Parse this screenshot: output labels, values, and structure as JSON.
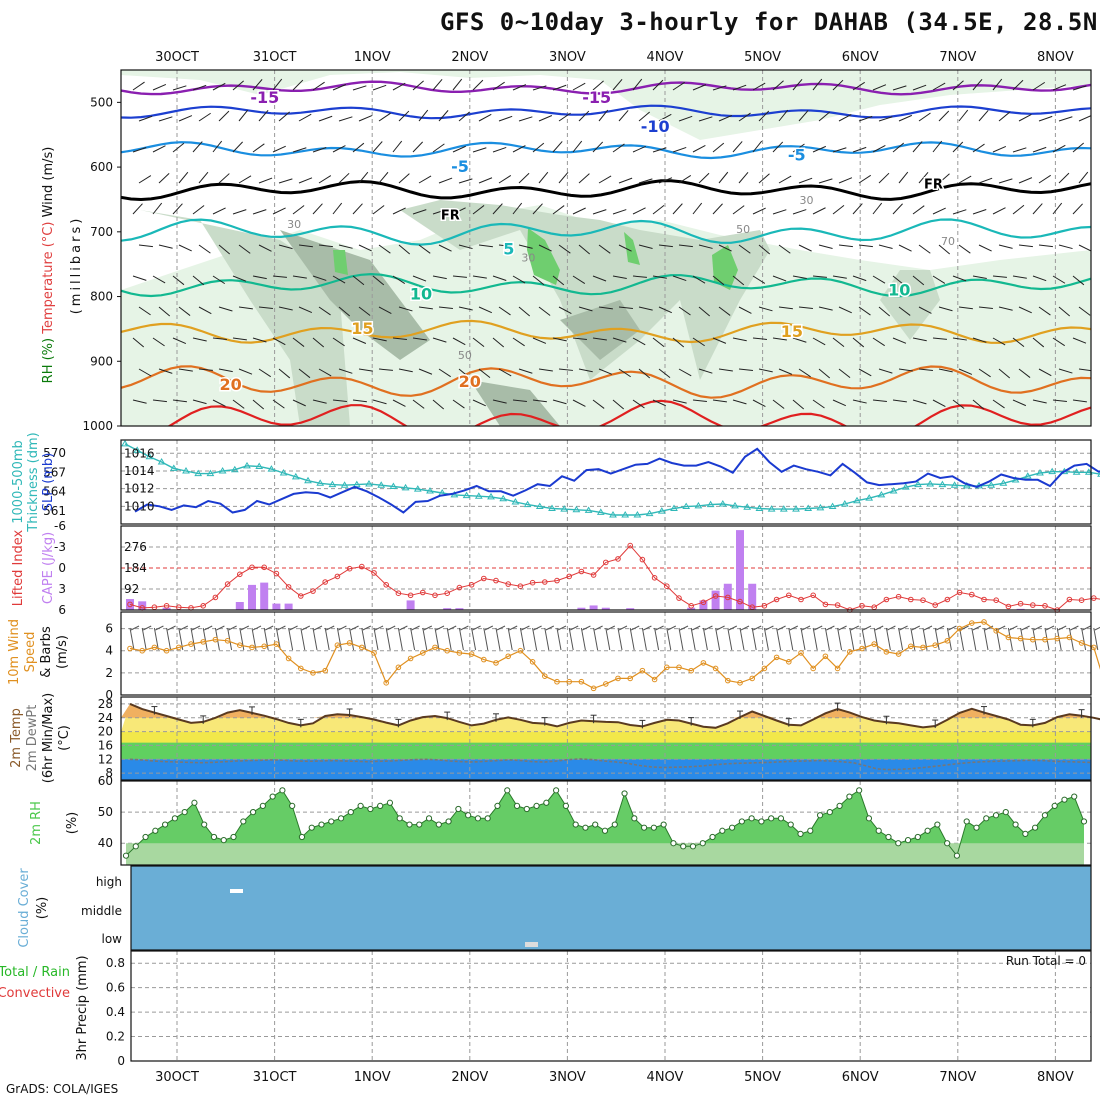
{
  "title": "GFS 0~10day 3-hourly for DAHAB (34.5E, 28.5N)",
  "credit": "GrADS: COLA/IGES",
  "dates": [
    "30OCT",
    "31OCT",
    "1NOV",
    "2NOV",
    "3NOV",
    "4NOV",
    "5NOV",
    "6NOV",
    "7NOV",
    "8NOV"
  ],
  "colors": {
    "rh_light": "#e6f4e6",
    "rh_mid": "#c9dcc9",
    "rh_dark": "#a8bca8",
    "rh_green": "#6fce6f",
    "temp_minus15": "#8a1fb0",
    "temp_minus10": "#1c3fd0",
    "temp_minus5": "#1a8ee0",
    "temp_0": "#000000",
    "temp_5": "#1ab8b8",
    "temp_10": "#12b890",
    "temp_15": "#e0a020",
    "temp_20": "#e07020",
    "temp_25": "#e02020",
    "slp": "#1a3ad0",
    "thickness": "#30b8b8",
    "lifted_index": "#e03a3a",
    "cape": "#c080f0",
    "wind10": "#e09020",
    "dewpt_band": "#2a8ae8",
    "rh2m": "#4cc84c",
    "cloud": "#6aaed6"
  },
  "chart_data": [
    {
      "panel": "cross-section",
      "type": "heatmap",
      "ylabel_parts": [
        "RH (%)",
        "Temperature (°C)",
        "Wind (m/s)"
      ],
      "ylabel2": "(millibars)",
      "y_ticks": [
        "500",
        "600",
        "700",
        "800",
        "900",
        "1000"
      ],
      "ylim": [
        450,
        1000
      ],
      "contour_labels": {
        "temperature": [
          {
            "value": "-15",
            "level": 493,
            "day": 0.9
          },
          {
            "value": "-15",
            "level": 493,
            "day": 4.3
          },
          {
            "value": "-10",
            "level": 538,
            "day": 4.9
          },
          {
            "value": "-5",
            "level": 582,
            "day": 6.35
          },
          {
            "value": "-5",
            "level": 600,
            "day": 2.9
          },
          {
            "value": "FR",
            "level": 673,
            "day": 2.8
          },
          {
            "value": "FR",
            "level": 625,
            "day": 7.75
          },
          {
            "value": "5",
            "level": 727,
            "day": 3.4
          },
          {
            "value": "10",
            "level": 797,
            "day": 2.5
          },
          {
            "value": "10",
            "level": 791,
            "day": 7.4
          },
          {
            "value": "15",
            "level": 850,
            "day": 1.9
          },
          {
            "value": "15",
            "level": 855,
            "day": 6.3
          },
          {
            "value": "20",
            "level": 937,
            "day": 0.55
          },
          {
            "value": "20",
            "level": 932,
            "day": 3.0
          }
        ],
        "relative_humidity": [
          {
            "value": "30",
            "level": 688,
            "day": 1.2
          },
          {
            "value": "30",
            "level": 651,
            "day": 6.45
          },
          {
            "value": "30",
            "level": 740,
            "day": 3.6
          },
          {
            "value": "50",
            "level": 696,
            "day": 5.8
          },
          {
            "value": "50",
            "level": 890,
            "day": 2.95
          },
          {
            "value": "70",
            "level": 714,
            "day": 7.9
          }
        ]
      }
    },
    {
      "panel": "slp-thickness",
      "type": "line",
      "ylabel_left": [
        "1000-500mb",
        "Thickness (dm)"
      ],
      "ylabel_right": "SLP (mb)",
      "left_ticks": [
        "570",
        "567",
        "564",
        "561"
      ],
      "right_ticks": [
        "1016",
        "1014",
        "1012",
        "1010"
      ],
      "ylim_slp": [
        1008,
        1017.5
      ],
      "ylim_thickness": [
        559,
        572
      ],
      "series": [
        {
          "name": "SLP (mb)",
          "values": [
            1009.4,
            1010.2,
            1010.0,
            1009.6,
            1010.1,
            1009.9,
            1010.6,
            1010.3,
            1009.3,
            1009.6,
            1010.6,
            1010.2,
            1010.8,
            1011.4,
            1011.6,
            1011.5,
            1011.0,
            1011.6,
            1012.2,
            1011.7,
            1011.0,
            1010.2,
            1009.3,
            1010.5,
            1010.6,
            1011.2,
            1011.4,
            1011.8,
            1012.3,
            1011.7,
            1011.7,
            1011.2,
            1011.8,
            1012.5,
            1012.3,
            1013.4,
            1012.9,
            1014.1,
            1014.2,
            1013.7,
            1014.2,
            1014.7,
            1014.8,
            1015.4,
            1014.9,
            1014.6,
            1014.6,
            1015.0,
            1014.5,
            1013.8,
            1015.6,
            1016.5,
            1015.0,
            1013.9,
            1014.6,
            1014.2,
            1013.9,
            1013.5,
            1014.8,
            1013.8,
            1012.7,
            1012.4,
            1012.5,
            1012.6,
            1012.8,
            1013.7,
            1013.2,
            1013.4,
            1012.6,
            1012.2,
            1012.8,
            1013.6,
            1013.2,
            1013.0,
            1013.0,
            1012.3,
            1013.8,
            1014.6,
            1014.8,
            1013.9,
            1014.4,
            1014.8,
            1015.2,
            1014.7,
            1014.9,
            1014.1,
            1015.0,
            1015.5,
            1015.0,
            1014.3,
            1014.6,
            1015.1
          ]
        },
        {
          "name": "1000-500mb Thickness (dm)",
          "values": [
            571.4,
            570.4,
            569.4,
            568.6,
            567.6,
            567.2,
            566.8,
            566.8,
            567.2,
            567.4,
            568.0,
            567.9,
            567.5,
            566.9,
            566.3,
            565.7,
            565.3,
            565.1,
            565.0,
            565.1,
            565.2,
            565.0,
            564.8,
            564.6,
            564.4,
            564.1,
            563.8,
            563.5,
            563.4,
            563.3,
            563.2,
            562.9,
            562.4,
            562.0,
            561.7,
            561.4,
            561.3,
            561.2,
            561.1,
            560.8,
            560.4,
            560.4,
            560.4,
            560.6,
            561.0,
            561.4,
            561.7,
            561.8,
            562.0,
            562.1,
            561.8,
            561.6,
            561.4,
            561.3,
            561.3,
            561.3,
            561.4,
            561.5,
            561.7,
            562.1,
            562.6,
            563.0,
            563.5,
            564.1,
            564.7,
            565.1,
            565.2,
            565.1,
            565.0,
            564.9,
            564.9,
            565.0,
            565.3,
            565.8,
            566.4,
            566.9,
            567.1,
            567.1,
            567.0,
            567.0,
            566.7,
            566.6,
            566.8,
            567.2,
            567.7,
            568.2,
            568.5,
            568.2,
            567.9,
            567.6,
            567.4,
            567.6
          ]
        }
      ]
    },
    {
      "panel": "stability",
      "type": "bar",
      "ylabel_left": [
        "Lifted Index"
      ],
      "ylabel_right": "CAPE (J/kg)",
      "left_ticks": [
        "-6",
        "-3",
        "0",
        "3",
        "6"
      ],
      "right_ticks": [
        "276",
        "184",
        "92"
      ],
      "ylim_lifted_index": [
        -6,
        6
      ],
      "ylim_cape": [
        0,
        368
      ],
      "series": [
        {
          "name": "CAPE (J/kg)",
          "values": [
            48,
            38,
            0,
            10,
            0,
            0,
            0,
            0,
            0,
            35,
            110,
            120,
            28,
            28,
            0,
            0,
            0,
            0,
            0,
            0,
            0,
            0,
            0,
            42,
            0,
            0,
            8,
            8,
            0,
            0,
            0,
            0,
            0,
            0,
            0,
            0,
            0,
            10,
            20,
            10,
            0,
            8,
            0,
            0,
            0,
            0,
            10,
            42,
            85,
            115,
            350,
            115,
            0,
            0,
            0,
            0,
            0,
            0,
            0,
            0,
            0,
            0,
            0,
            0,
            0,
            0,
            0,
            0,
            0,
            0,
            0,
            0,
            0,
            5,
            0,
            0,
            0,
            0,
            0,
            0,
            0,
            0,
            0,
            0,
            0,
            0,
            0,
            0,
            0,
            0,
            0,
            0
          ]
        },
        {
          "name": "Lifted Index",
          "values": [
            5.2,
            5.7,
            5.6,
            5.4,
            5.6,
            5.7,
            5.4,
            4.2,
            2.3,
            0.9,
            -0.1,
            -0.1,
            0.8,
            2.7,
            4.0,
            3.3,
            2.0,
            1.2,
            0.1,
            -0.2,
            0.7,
            2.4,
            3.6,
            3.9,
            3.5,
            3.9,
            3.6,
            2.8,
            2.4,
            1.5,
            1.8,
            2.3,
            2.6,
            2.1,
            2.0,
            1.8,
            1.2,
            0.5,
            1.0,
            -0.8,
            -1.3,
            -3.2,
            -1.2,
            1.4,
            2.6,
            4.3,
            5.4,
            4.9,
            4.0,
            4.2,
            4.8,
            5.6,
            5.4,
            4.5,
            3.9,
            4.5,
            3.9,
            5.2,
            5.3,
            6.0,
            5.4,
            5.6,
            4.5,
            4.1,
            4.5,
            4.6,
            5.3,
            4.5,
            3.5,
            3.8,
            4.5,
            4.6,
            5.5,
            5.1,
            5.3,
            5.4,
            6.0,
            4.5,
            4.6,
            4.3,
            4.6,
            5.4,
            6.0,
            5.6,
            2.9,
            2.9,
            2.8,
            3.2,
            4.2,
            4.6,
            4.2,
            3.0
          ]
        }
      ]
    },
    {
      "panel": "wind10m",
      "type": "line",
      "ylabel": [
        "10m Wind",
        "Speed",
        "& Barbs",
        "(m/s)"
      ],
      "y_ticks": [
        "6",
        "4",
        "2",
        "0"
      ],
      "ylim": [
        0,
        7.5
      ],
      "series": [
        {
          "name": "10m Wind Speed (m/s)",
          "values": [
            4.2,
            4.0,
            4.3,
            4.0,
            4.3,
            4.6,
            4.8,
            5.0,
            4.9,
            4.5,
            4.3,
            4.4,
            4.6,
            3.3,
            2.4,
            2.0,
            2.2,
            4.5,
            4.7,
            4.3,
            3.8,
            1.1,
            2.5,
            3.3,
            3.8,
            4.3,
            4.0,
            3.8,
            3.7,
            3.2,
            2.9,
            3.5,
            4.0,
            3.0,
            1.7,
            1.2,
            1.2,
            1.2,
            0.6,
            1.0,
            1.5,
            1.5,
            2.2,
            1.4,
            2.5,
            2.5,
            2.2,
            2.9,
            2.4,
            1.3,
            1.1,
            1.5,
            2.4,
            3.4,
            3.0,
            3.8,
            2.4,
            3.5,
            2.4,
            3.9,
            4.2,
            4.6,
            3.9,
            3.7,
            4.4,
            4.3,
            4.5,
            4.9,
            6.0,
            6.5,
            6.6,
            5.8,
            5.2,
            5.1,
            5.0,
            5.0,
            5.1,
            5.2,
            4.7,
            4.3,
            0.7,
            3.4,
            4.3,
            3.9,
            4.4,
            3.9,
            4.2,
            3.9,
            4.7,
            4.6,
            3.7,
            4.0,
            3.6,
            3.6,
            3.8,
            3.8,
            3.6,
            3.2
          ]
        }
      ]
    },
    {
      "panel": "temperature2m",
      "type": "area",
      "ylabel": [
        "2m Temp",
        "2m DewPt",
        "(6hr Min/Max)",
        "(°C)"
      ],
      "y_ticks": [
        "28",
        "24",
        "20",
        "16",
        "12",
        "8"
      ],
      "ylim": [
        6,
        30
      ],
      "series": [
        {
          "name": "2m Temp (°C)",
          "values": [
            28.0,
            26.5,
            25.5,
            24.5,
            23.5,
            22.5,
            22.8,
            24.0,
            25.5,
            26.2,
            25.4,
            24.6,
            23.6,
            22.5,
            21.8,
            22.4,
            24.5,
            25.0,
            24.8,
            24.2,
            23.5,
            22.6,
            21.8,
            23.2,
            24.2,
            24.5,
            23.9,
            22.8,
            21.8,
            22.3,
            23.4,
            24.1,
            23.4,
            22.5,
            22.3,
            21.5,
            22.5,
            23.2,
            23.0,
            22.8,
            22.7,
            21.9,
            21.5,
            22.5,
            23.4,
            23.2,
            22.3,
            21.4,
            21.1,
            22.4,
            24.2,
            25.8,
            24.5,
            23.2,
            22.0,
            21.8,
            23.5,
            25.3,
            26.5,
            25.5,
            24.2,
            23.2,
            22.7,
            22.4,
            21.8,
            21.2,
            21.6,
            23.4,
            25.4,
            26.6,
            25.5,
            24.5,
            23.5,
            22.0,
            21.8,
            22.5,
            24.2,
            25.0,
            24.6,
            24.0,
            23.2,
            22.8,
            22.4,
            22.2,
            23.2,
            24.7,
            25.8,
            25.9,
            24.6,
            23.5,
            23.0,
            22.6,
            22.4
          ]
        },
        {
          "name": "2m DewPt (°C)",
          "values": [
            12.0,
            11.8,
            11.5,
            11.3,
            11.2,
            11.1,
            11.0,
            11.1,
            11.3,
            11.5,
            11.6,
            11.7,
            11.8,
            11.7,
            11.5,
            11.4,
            11.5,
            11.6,
            11.5,
            11.4,
            11.3,
            11.4,
            11.5,
            11.7,
            11.9,
            12.0,
            11.8,
            11.5,
            11.3,
            11.2,
            11.4,
            11.6,
            11.8,
            11.6,
            11.3,
            11.2,
            11.5,
            11.9,
            12.1,
            11.9,
            11.5,
            11.2,
            10.8,
            10.2,
            9.8,
            9.6,
            9.7,
            9.8,
            10.0,
            10.3,
            10.6,
            10.8,
            10.9,
            11.0,
            11.1,
            11.3,
            11.4,
            11.5,
            11.6,
            11.5,
            11.3,
            11.0,
            10.2,
            9.2,
            9.0,
            9.1,
            9.3,
            9.6,
            10.0,
            10.4,
            10.8,
            11.1,
            11.3,
            11.4,
            11.5,
            11.6,
            11.7,
            11.6,
            11.4,
            11.3,
            11.2,
            11.1
          ]
        }
      ]
    },
    {
      "panel": "rh2m",
      "type": "area",
      "ylabel": [
        "2m RH",
        "(%)"
      ],
      "y_ticks": [
        "60",
        "50",
        "40"
      ],
      "ylim": [
        33,
        60
      ],
      "series": [
        {
          "name": "2m RH (%)",
          "values": [
            36,
            39,
            42,
            44,
            46,
            48,
            50,
            53,
            46,
            42,
            41,
            42,
            47,
            50,
            52,
            55,
            57,
            52,
            42,
            45,
            46,
            47,
            48,
            50,
            52,
            51,
            52,
            53,
            48,
            46,
            46,
            48,
            46,
            47,
            51,
            49,
            48,
            48,
            52,
            57,
            52,
            51,
            52,
            53,
            57,
            52,
            46,
            45,
            46,
            44,
            46,
            56,
            48,
            45,
            45,
            46,
            40,
            39,
            39,
            40,
            42,
            44,
            45,
            47,
            48,
            47,
            48,
            48,
            46,
            43,
            44,
            49,
            50,
            52,
            55,
            57,
            48,
            44,
            42,
            40,
            41,
            42,
            44,
            46,
            40,
            36,
            47,
            45,
            48,
            49,
            50,
            46,
            43,
            45,
            49,
            52,
            54,
            55,
            47
          ]
        }
      ]
    },
    {
      "panel": "cloud-cover",
      "type": "heatmap",
      "ylabel": [
        "Cloud Cover",
        "(%)"
      ],
      "y_ticks": [
        "high",
        "middle",
        "low"
      ],
      "notes": "uniform blue fill (0% cloud) with two small white marks"
    },
    {
      "panel": "precip",
      "type": "bar",
      "ylabel_left": [
        "Total / Rain",
        "Convective"
      ],
      "ylabel_right": [
        "3hr Precip (mm)"
      ],
      "y_ticks": [
        "0.8",
        "0.6",
        "0.4",
        "0.2",
        "0"
      ],
      "ylim": [
        0,
        0.9
      ],
      "run_total_label": "Run Total = 0",
      "series": [
        {
          "name": "3hr Precip (mm)",
          "values": []
        }
      ]
    }
  ]
}
